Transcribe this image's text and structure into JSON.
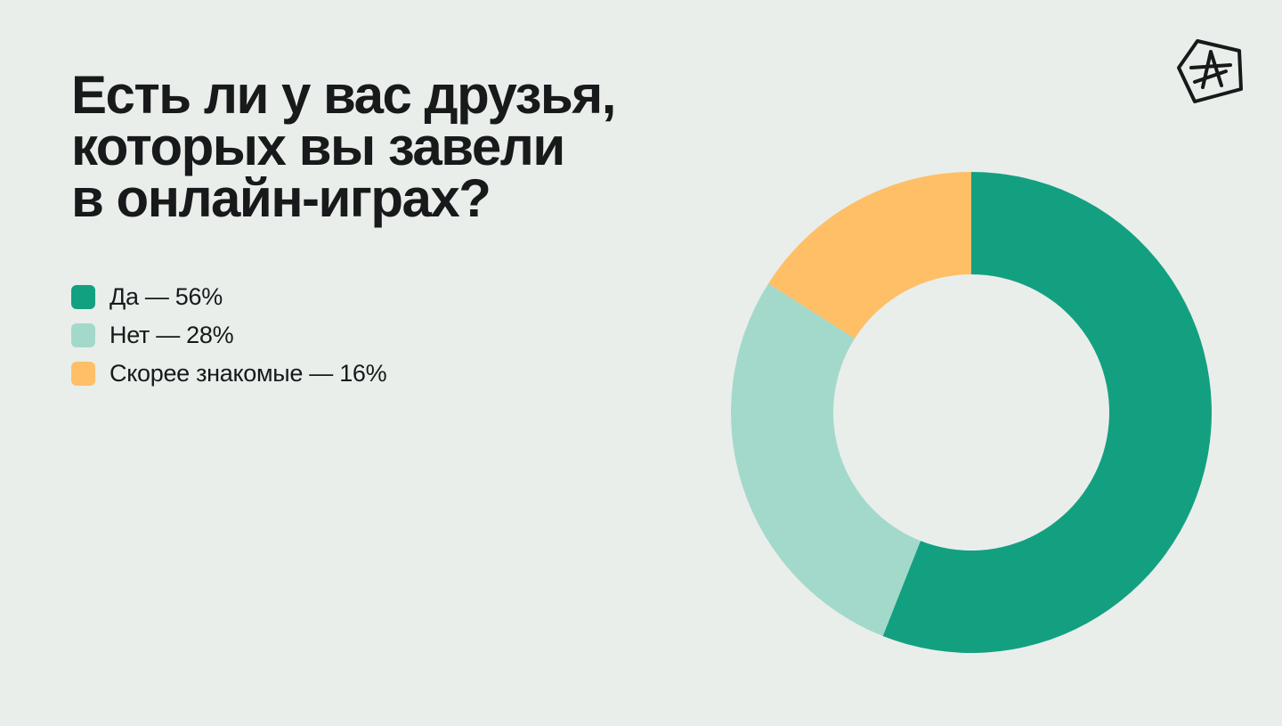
{
  "title_lines": [
    "Есть ли у вас друзья,",
    "которых вы завели",
    "в онлайн-играх?"
  ],
  "logo_icon": "star-badge-logo",
  "chart_data": {
    "type": "pie",
    "variant": "donut",
    "title": "Есть ли у вас друзья, которых вы завели в онлайн-играх?",
    "unit": "%",
    "slices": [
      {
        "label": "Да",
        "value": 56,
        "color": "#13a081",
        "legend_text": "Да — 56%"
      },
      {
        "label": "Нет",
        "value": 28,
        "color": "#a3d9cb",
        "legend_text": "Нет — 28%"
      },
      {
        "label": "Скорее знакомые",
        "value": 16,
        "color": "#ffbf66",
        "legend_text": "Скорее знакомые — 16%"
      }
    ],
    "legend_position": "left"
  }
}
